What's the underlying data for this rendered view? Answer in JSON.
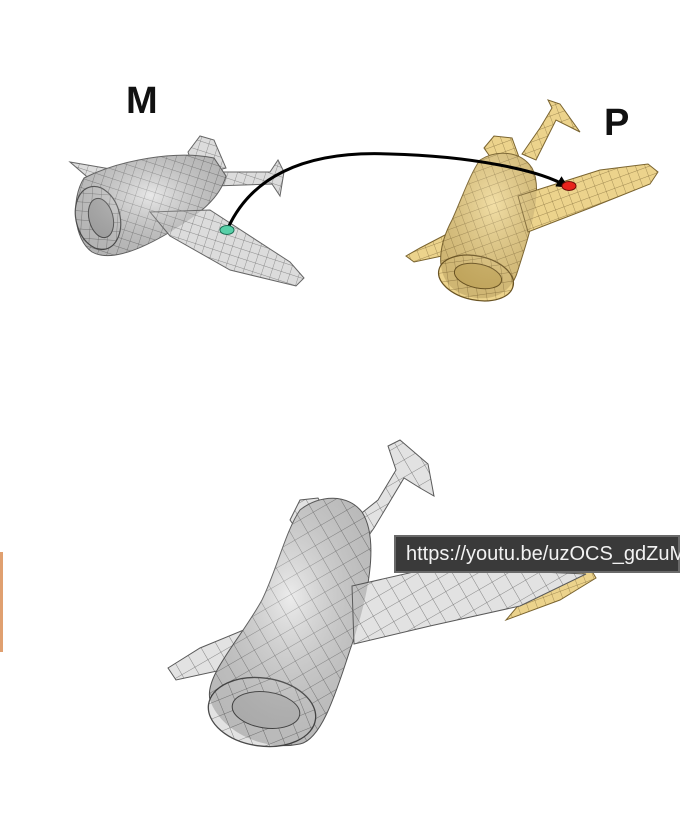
{
  "labels": {
    "source": "M",
    "target": "P"
  },
  "tooltip": {
    "url": "https://youtu.be/uzOCS_gdZuM"
  },
  "colors": {
    "source_mesh": "#d6d6d6",
    "target_mesh": "#e8cf86",
    "source_point": "#58d0a8",
    "target_point": "#e8241c",
    "arrow": "#000000",
    "tooltip_bg": "#3a3a3a"
  },
  "icons": {
    "source_point": "dot-icon",
    "target_point": "dot-icon",
    "arrow": "arrow-icon"
  }
}
